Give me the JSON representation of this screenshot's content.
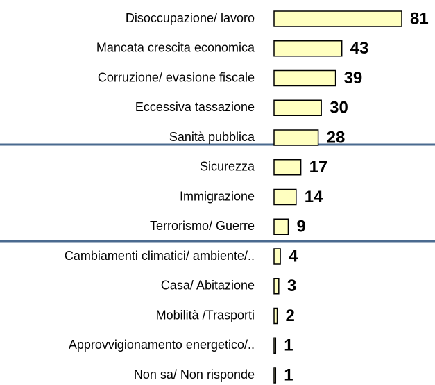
{
  "chart_data": {
    "type": "bar",
    "orientation": "horizontal",
    "categories": [
      "Disoccupazione/ lavoro",
      "Mancata crescita economica",
      "Corruzione/ evasione fiscale",
      "Eccessiva tassazione",
      "Sanità  pubblica",
      "Sicurezza",
      "Immigrazione",
      "Terrorismo/ Guerre",
      "Cambiamenti climatici/ ambiente/..",
      "Casa/ Abitazione",
      "Mobilità /Trasporti",
      "Approvvigionamento energetico/..",
      "Non sa/ Non risponde"
    ],
    "values": [
      81,
      43,
      39,
      30,
      28,
      17,
      14,
      9,
      4,
      3,
      2,
      1,
      1
    ],
    "color": "#ffffc0"
  }
}
